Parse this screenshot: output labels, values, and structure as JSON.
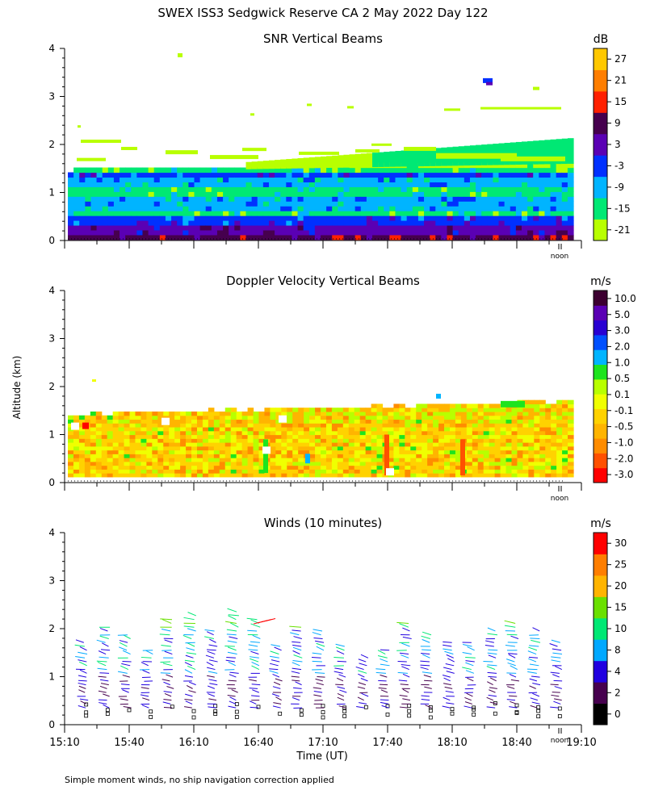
{
  "page": {
    "title": "SWEX ISS3 Sedgwick Reserve CA   2 May 2022 Day 122",
    "ylabel": "Altitude (km)",
    "xlabel": "Time (UT)",
    "footnote": "Simple moment winds, no ship navigation correction applied",
    "noon_label": "noon"
  },
  "x_ticks": [
    "15:10",
    "15:40",
    "16:10",
    "16:40",
    "17:10",
    "17:40",
    "18:10",
    "18:40",
    "19:10"
  ],
  "y_ticks": [
    "0",
    "1",
    "2",
    "3",
    "4"
  ],
  "colors": {
    "snr": [
      "#b8ff00",
      "#00e874",
      "#00b4ff",
      "#0030ff",
      "#5a00b4",
      "#46004e",
      "#ff2000",
      "#ff7e00",
      "#ffc800"
    ],
    "doppler": [
      "#ff0000",
      "#ff5000",
      "#ff8c00",
      "#ffb400",
      "#ffd200",
      "#f0ff00",
      "#b8ff00",
      "#1ee41e",
      "#00b4ff",
      "#0050ff",
      "#2800d2",
      "#5a00b4",
      "#3c0030"
    ],
    "winds": [
      "#000000",
      "#46004e",
      "#2000e0",
      "#00a8ff",
      "#00e874",
      "#6ae000",
      "#ffb400",
      "#ff7e00",
      "#ff0000"
    ]
  },
  "chart_data": [
    {
      "type": "heatmap",
      "title": "SNR Vertical Beams",
      "unit": "dB",
      "xlabel": "Time (UT)",
      "ylabel": "Altitude (km)",
      "xlim": [
        "15:10",
        "19:10"
      ],
      "ylim": [
        0,
        4
      ],
      "colorbar_ticks": [
        "27",
        "21",
        "15",
        "9",
        "3",
        "-3",
        "-9",
        "-15",
        "-21"
      ],
      "layers": [
        {
          "altitude_km": [
            0.0,
            0.3
          ],
          "snr_db": 9
        },
        {
          "altitude_km": [
            0.3,
            0.6
          ],
          "snr_db": 0
        },
        {
          "altitude_km": [
            0.6,
            1.0
          ],
          "snr_db": -9
        },
        {
          "altitude_km": [
            1.0,
            1.3
          ],
          "snr_db": -12
        },
        {
          "altitude_km": [
            1.3,
            1.5
          ],
          "snr_db": -3
        },
        {
          "altitude_km": [
            1.5,
            2.0
          ],
          "snr_db": -18
        }
      ]
    },
    {
      "type": "heatmap",
      "title": "Doppler Velocity Vertical Beams",
      "unit": "m/s",
      "xlabel": "Time (UT)",
      "ylabel": "Altitude (km)",
      "xlim": [
        "15:10",
        "19:10"
      ],
      "ylim": [
        0,
        4
      ],
      "colorbar_ticks": [
        "10.0",
        "5.0",
        "3.0",
        "2.0",
        "1.0",
        "0.5",
        "0.1",
        "-0.1",
        "-0.5",
        "-1.0",
        "-2.0",
        "-3.0"
      ],
      "dominant_range_ms": [
        -0.5,
        0.1
      ],
      "valid_altitude_km": [
        0.1,
        1.5
      ]
    },
    {
      "type": "scatter",
      "title": "Winds (10 minutes)",
      "unit": "m/s",
      "xlabel": "Time (UT)",
      "ylabel": "Altitude (km)",
      "xlim": [
        "15:10",
        "19:10"
      ],
      "ylim": [
        0,
        4
      ],
      "colorbar_ticks": [
        "30",
        "25",
        "20",
        "15",
        "10",
        "8",
        "4",
        "2",
        "0"
      ],
      "profile_times": [
        "15:20",
        "15:30",
        "15:40",
        "15:50",
        "16:00",
        "16:10",
        "16:20",
        "16:30",
        "16:40",
        "16:50",
        "17:00",
        "17:10",
        "17:20",
        "17:30",
        "17:40",
        "17:50",
        "18:00",
        "18:10",
        "18:20",
        "18:30",
        "18:40",
        "18:50",
        "19:00"
      ],
      "typical_speed_ms": {
        "below_1km": 3,
        "1_to_2km": 6,
        "above_2km": 11
      },
      "typical_direction_deg": 290
    }
  ]
}
